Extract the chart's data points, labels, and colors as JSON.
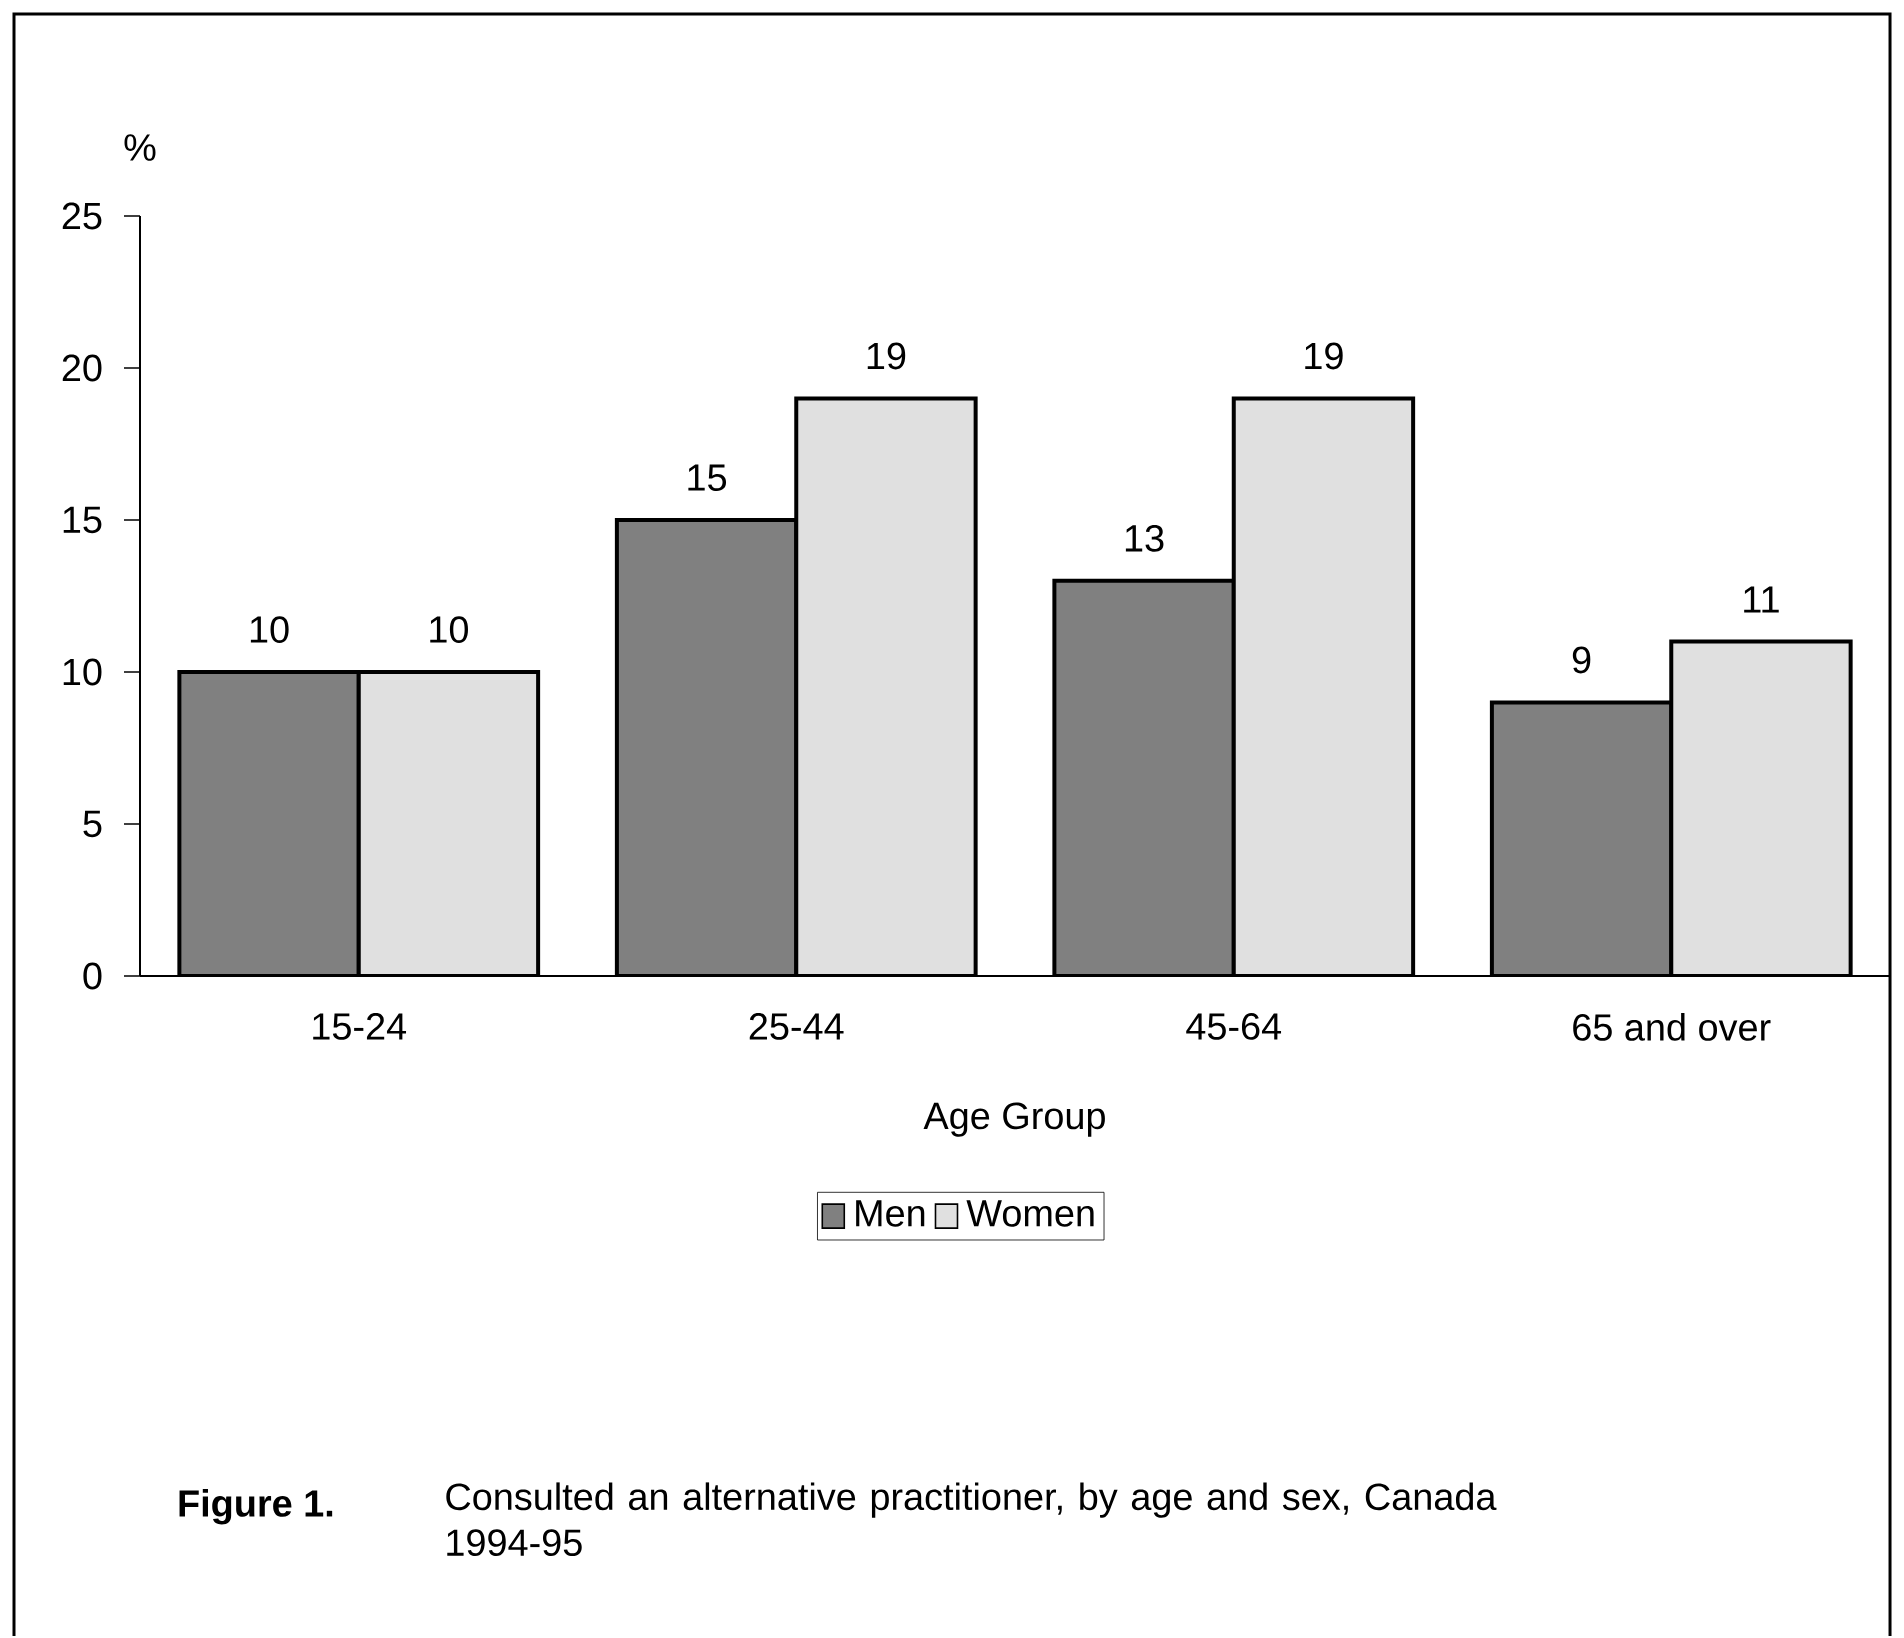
{
  "chart_data": {
    "type": "bar",
    "title": "Figure 1.",
    "subtitle": "Consulted an alternative practitioner, by age and sex, Canada 1994-95",
    "xlabel": "Age Group",
    "ylabel": "%",
    "categories": [
      "15-24",
      "25-44",
      "45-64",
      "65 and over"
    ],
    "series": [
      {
        "name": "Men",
        "color": "#808080",
        "values": [
          10,
          15,
          13,
          9
        ]
      },
      {
        "name": "Women",
        "color": "#e0e0e0",
        "values": [
          10,
          19,
          19,
          11
        ]
      }
    ],
    "ylim": [
      0,
      25
    ],
    "yticks": [
      0,
      5,
      10,
      15,
      20,
      25
    ],
    "data_labels": true,
    "grid": false,
    "legend": "bottom"
  }
}
